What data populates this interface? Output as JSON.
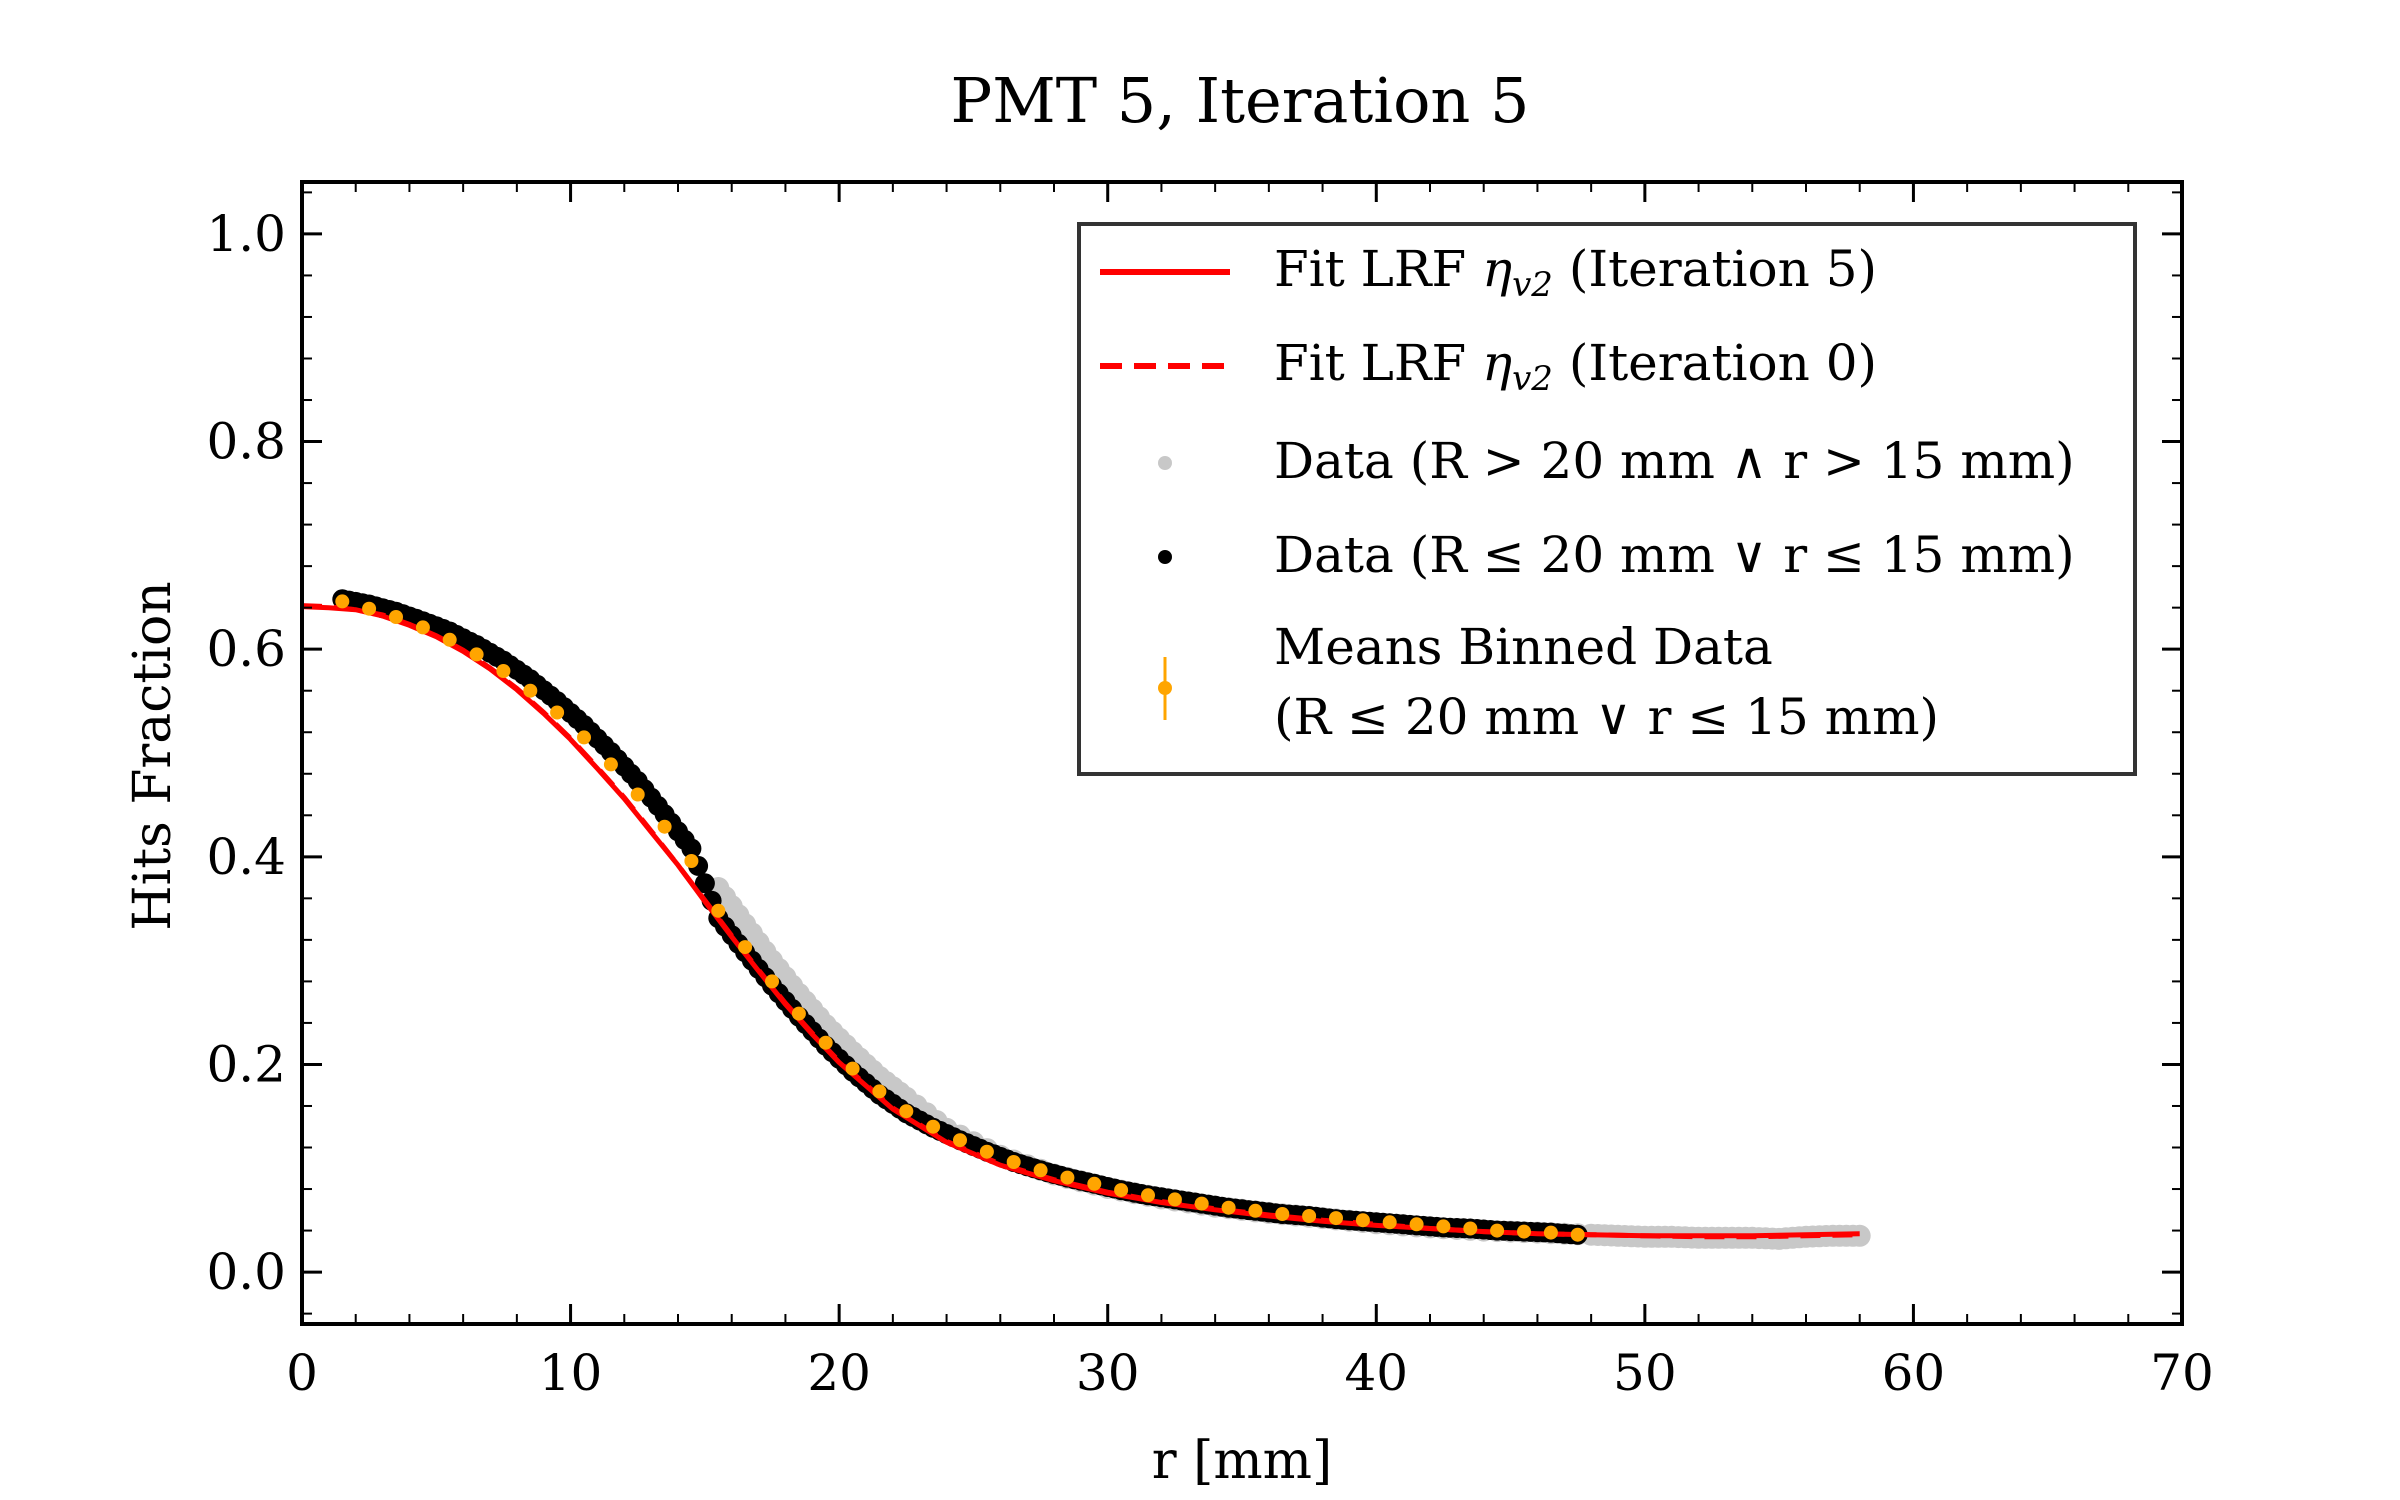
{
  "chart_data": {
    "type": "scatter",
    "title": "PMT 5, Iteration 5",
    "xlabel": "r [mm]",
    "ylabel": "Hits Fraction",
    "xlim": [
      0,
      70
    ],
    "ylim": [
      -0.05,
      1.05
    ],
    "x_ticks": [
      0,
      10,
      20,
      30,
      40,
      50,
      60,
      70
    ],
    "y_ticks": [
      0.0,
      0.2,
      0.4,
      0.6,
      0.8,
      1.0
    ],
    "x_tick_labels": [
      "0",
      "10",
      "20",
      "30",
      "40",
      "50",
      "60",
      "70"
    ],
    "y_tick_labels": [
      "0.0",
      "0.2",
      "0.4",
      "0.6",
      "0.8",
      "1.0"
    ],
    "legend_position": "upper right",
    "grid": false,
    "series": [
      {
        "name": "Fit LRF ηv2 (Iteration 5)",
        "kind": "line",
        "style": "solid",
        "color": "#ff0000",
        "x": [
          0,
          1,
          2,
          3,
          4,
          5,
          6,
          7,
          8,
          9,
          10,
          11,
          12,
          13,
          14,
          15,
          16,
          17,
          18,
          19,
          20,
          22,
          24,
          26,
          28,
          30,
          32,
          34,
          36,
          38,
          40,
          42,
          44,
          46,
          48,
          50,
          52,
          54,
          56,
          58
        ],
        "y": [
          0.641,
          0.64,
          0.638,
          0.632,
          0.623,
          0.612,
          0.598,
          0.581,
          0.561,
          0.538,
          0.513,
          0.485,
          0.456,
          0.424,
          0.392,
          0.357,
          0.323,
          0.29,
          0.258,
          0.229,
          0.202,
          0.157,
          0.125,
          0.103,
          0.088,
          0.076,
          0.067,
          0.06,
          0.054,
          0.049,
          0.045,
          0.042,
          0.039,
          0.037,
          0.036,
          0.035,
          0.035,
          0.035,
          0.036,
          0.037
        ]
      },
      {
        "name": "Fit LRF ηv2 (Iteration 0)",
        "kind": "line",
        "style": "dashed",
        "color": "#ff0000",
        "x": [
          0,
          1,
          2,
          3,
          4,
          5,
          6,
          7,
          8,
          9,
          10,
          11,
          12,
          13,
          14,
          15,
          16,
          17,
          18,
          19,
          20,
          22,
          24,
          26,
          28,
          30,
          32,
          34,
          36,
          38,
          40,
          42,
          44,
          46,
          48,
          50,
          52,
          54,
          56,
          58
        ],
        "y": [
          0.642,
          0.641,
          0.638,
          0.633,
          0.624,
          0.613,
          0.599,
          0.582,
          0.562,
          0.539,
          0.514,
          0.486,
          0.457,
          0.425,
          0.392,
          0.358,
          0.324,
          0.291,
          0.259,
          0.23,
          0.203,
          0.158,
          0.126,
          0.104,
          0.089,
          0.077,
          0.068,
          0.061,
          0.055,
          0.05,
          0.046,
          0.042,
          0.039,
          0.037,
          0.036,
          0.035,
          0.034,
          0.034,
          0.035,
          0.036
        ]
      },
      {
        "name": "Data (R > 20 mm ∧ r > 15 mm)",
        "kind": "scatter",
        "color": "#c8c8c8",
        "x": [
          15.5,
          16.5,
          17.5,
          18.5,
          19.5,
          20.5,
          21.5,
          22.5,
          24,
          26,
          28,
          30,
          32,
          34,
          36,
          38,
          40,
          42,
          44,
          46,
          48,
          49,
          50,
          51,
          52,
          53,
          54,
          55,
          56,
          57,
          58
        ],
        "y": [
          0.37,
          0.335,
          0.3,
          0.268,
          0.238,
          0.212,
          0.188,
          0.168,
          0.138,
          0.112,
          0.094,
          0.081,
          0.071,
          0.063,
          0.057,
          0.052,
          0.047,
          0.043,
          0.04,
          0.038,
          0.036,
          0.035,
          0.034,
          0.034,
          0.033,
          0.033,
          0.033,
          0.032,
          0.034,
          0.035,
          0.035
        ]
      },
      {
        "name": "Data (R ≤ 20 mm ∨ r ≤ 15 mm)",
        "kind": "scatter",
        "color": "#000000",
        "x": [
          1.5,
          2.5,
          3.5,
          4.5,
          5.5,
          6.5,
          7.5,
          8.5,
          9.5,
          10.5,
          11.5,
          12.5,
          13.5,
          14.5,
          15.5,
          16.5,
          17.5,
          18.5,
          19.5,
          20.5,
          21.5,
          22.5,
          23.5,
          24.5,
          25.5,
          26.5,
          27.5,
          28.5,
          29.5,
          30.5,
          31.5,
          32.5,
          33.5,
          34.5,
          35.5,
          36.5,
          37.5,
          38.5,
          39.5,
          40.5,
          41.5,
          42.5,
          43.5,
          44.5,
          45.5,
          46.5,
          47.5
        ],
        "y": [
          0.648,
          0.643,
          0.636,
          0.627,
          0.617,
          0.604,
          0.589,
          0.571,
          0.55,
          0.527,
          0.501,
          0.473,
          0.441,
          0.408,
          0.341,
          0.308,
          0.276,
          0.246,
          0.218,
          0.193,
          0.171,
          0.153,
          0.139,
          0.127,
          0.116,
          0.106,
          0.098,
          0.091,
          0.085,
          0.079,
          0.074,
          0.07,
          0.066,
          0.062,
          0.059,
          0.056,
          0.054,
          0.051,
          0.049,
          0.047,
          0.045,
          0.043,
          0.042,
          0.04,
          0.039,
          0.038,
          0.036
        ]
      },
      {
        "name": "Means Binned Data\n(R ≤ 20 mm ∨ r ≤ 15 mm)",
        "kind": "errorbar",
        "color": "#ffa500",
        "x": [
          1.5,
          2.5,
          3.5,
          4.5,
          5.5,
          6.5,
          7.5,
          8.5,
          9.5,
          10.5,
          11.5,
          12.5,
          13.5,
          14.5,
          15.5,
          16.5,
          17.5,
          18.5,
          19.5,
          20.5,
          21.5,
          22.5,
          23.5,
          24.5,
          25.5,
          26.5,
          27.5,
          28.5,
          29.5,
          30.5,
          31.5,
          32.5,
          33.5,
          34.5,
          35.5,
          36.5,
          37.5,
          38.5,
          39.5,
          40.5,
          41.5,
          42.5,
          43.5,
          44.5,
          45.5,
          46.5,
          47.5
        ],
        "y": [
          0.646,
          0.639,
          0.631,
          0.621,
          0.609,
          0.595,
          0.579,
          0.56,
          0.539,
          0.515,
          0.489,
          0.46,
          0.429,
          0.396,
          0.348,
          0.313,
          0.28,
          0.249,
          0.221,
          0.196,
          0.174,
          0.155,
          0.14,
          0.127,
          0.116,
          0.106,
          0.098,
          0.091,
          0.085,
          0.079,
          0.074,
          0.07,
          0.066,
          0.062,
          0.059,
          0.056,
          0.054,
          0.052,
          0.05,
          0.048,
          0.046,
          0.044,
          0.042,
          0.04,
          0.039,
          0.038,
          0.036
        ]
      }
    ]
  },
  "legend": {
    "entries": [
      {
        "prefix": "Fit LRF ",
        "symbol": "η",
        "subscript": "v2",
        "suffix": " (Iteration 5)"
      },
      {
        "prefix": "Fit LRF ",
        "symbol": "η",
        "subscript": "v2",
        "suffix": " (Iteration 0)"
      },
      {
        "text": "Data (R > 20 mm ∧ r > 15 mm)"
      },
      {
        "text": "Data (R ≤ 20 mm ∨ r ≤ 15 mm)"
      },
      {
        "line1": "Means Binned Data",
        "line2": "(R ≤ 20 mm ∨ r ≤ 15 mm)"
      }
    ]
  }
}
